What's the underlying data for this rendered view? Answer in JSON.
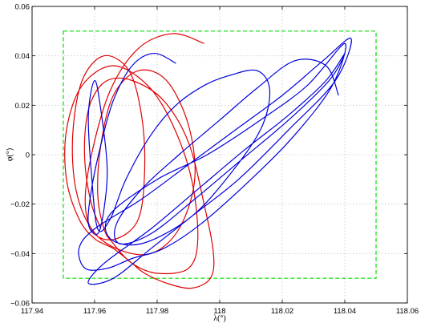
{
  "chart_data": {
    "type": "line",
    "xlabel": "λ(°)",
    "ylabel": "φ(°)",
    "xlim": [
      117.94,
      118.06
    ],
    "ylim": [
      -0.06,
      0.06
    ],
    "x_ticks": [
      "117.94",
      "117.96",
      "117.98",
      "118",
      "118.02",
      "118.04",
      "118.06"
    ],
    "y_ticks": [
      "−0.06",
      "−0.04",
      "−0.02",
      "0",
      "0.02",
      "0.04",
      "0.06"
    ],
    "grid": true,
    "boundary_box": {
      "color": "#00e000",
      "style": "dashed",
      "x": [
        117.95,
        118.05
      ],
      "y": [
        -0.05,
        0.05
      ]
    },
    "series": [
      {
        "color": "#e00000",
        "points": [
          [
            117.995,
            0.045
          ],
          [
            117.985,
            0.049
          ],
          [
            117.974,
            0.043
          ],
          [
            117.965,
            0.026
          ],
          [
            117.959,
            0.0
          ],
          [
            117.957,
            -0.02
          ],
          [
            117.96,
            -0.032
          ],
          [
            117.967,
            -0.034
          ],
          [
            117.974,
            -0.026
          ],
          [
            117.976,
            -0.006
          ],
          [
            117.975,
            0.016
          ],
          [
            117.971,
            0.034
          ],
          [
            117.963,
            0.04
          ],
          [
            117.956,
            0.03
          ],
          [
            117.953,
            0.008
          ],
          [
            117.954,
            -0.014
          ],
          [
            117.959,
            -0.03
          ],
          [
            117.967,
            -0.038
          ],
          [
            117.978,
            -0.04
          ],
          [
            117.987,
            -0.03
          ],
          [
            117.992,
            -0.01
          ],
          [
            117.99,
            0.012
          ],
          [
            117.983,
            0.03
          ],
          [
            117.974,
            0.034
          ],
          [
            117.966,
            0.024
          ],
          [
            117.962,
            0.004
          ],
          [
            117.961,
            -0.016
          ],
          [
            117.963,
            -0.03
          ],
          [
            117.966,
            -0.036
          ],
          [
            117.972,
            -0.044
          ],
          [
            117.98,
            -0.048
          ],
          [
            117.99,
            -0.046
          ],
          [
            117.993,
            -0.034
          ],
          [
            117.991,
            -0.01
          ],
          [
            117.985,
            0.012
          ],
          [
            117.977,
            0.028
          ],
          [
            117.966,
            0.036
          ],
          [
            117.956,
            0.028
          ],
          [
            117.951,
            0.01
          ],
          [
            117.951,
            -0.01
          ],
          [
            117.955,
            -0.026
          ],
          [
            117.96,
            -0.034
          ],
          [
            117.966,
            -0.038
          ],
          [
            117.972,
            -0.044
          ],
          [
            117.976,
            -0.048
          ],
          [
            117.983,
            -0.052
          ],
          [
            117.991,
            -0.054
          ],
          [
            117.997,
            -0.05
          ],
          [
            117.998,
            -0.04
          ],
          [
            117.995,
            -0.02
          ],
          [
            117.99,
            0.005
          ],
          [
            117.982,
            0.022
          ],
          [
            117.972,
            0.03
          ],
          [
            117.964,
            0.03
          ],
          [
            117.959,
            0.022
          ],
          [
            117.957,
            0.01
          ],
          [
            117.957,
            -0.005
          ],
          [
            117.959,
            -0.02
          ],
          [
            117.962,
            -0.03
          ]
        ]
      },
      {
        "color": "#0000dd",
        "points": [
          [
            117.986,
            0.037
          ],
          [
            117.979,
            0.041
          ],
          [
            117.972,
            0.036
          ],
          [
            117.966,
            0.022
          ],
          [
            117.962,
            0.004
          ],
          [
            117.959,
            -0.014
          ],
          [
            117.958,
            -0.028
          ],
          [
            117.961,
            -0.032
          ],
          [
            117.963,
            -0.022
          ],
          [
            117.964,
            -0.005
          ],
          [
            117.962,
            0.018
          ],
          [
            117.96,
            0.03
          ],
          [
            117.958,
            0.016
          ],
          [
            117.959,
            -0.008
          ],
          [
            117.961,
            -0.03
          ],
          [
            117.965,
            -0.026
          ],
          [
            117.97,
            -0.01
          ],
          [
            117.978,
            0.008
          ],
          [
            117.986,
            0.02
          ],
          [
            117.995,
            0.028
          ],
          [
            118.003,
            0.032
          ],
          [
            118.012,
            0.034
          ],
          [
            118.016,
            0.026
          ],
          [
            118.013,
            0.01
          ],
          [
            118.002,
            -0.01
          ],
          [
            117.99,
            -0.026
          ],
          [
            117.975,
            -0.036
          ],
          [
            117.965,
            -0.034
          ],
          [
            117.965,
            -0.024
          ],
          [
            117.98,
            -0.01
          ],
          [
            117.996,
            0.0
          ],
          [
            118.013,
            0.014
          ],
          [
            118.028,
            0.028
          ],
          [
            118.04,
            0.045
          ],
          [
            118.036,
            0.028
          ],
          [
            118.024,
            0.008
          ],
          [
            118.01,
            -0.01
          ],
          [
            117.994,
            -0.028
          ],
          [
            117.982,
            -0.038
          ],
          [
            117.972,
            -0.042
          ],
          [
            117.964,
            -0.046
          ],
          [
            117.957,
            -0.046
          ],
          [
            117.955,
            -0.038
          ],
          [
            117.96,
            -0.03
          ],
          [
            117.975,
            -0.018
          ],
          [
            117.99,
            -0.004
          ],
          [
            118.005,
            0.01
          ],
          [
            118.02,
            0.024
          ],
          [
            118.033,
            0.038
          ],
          [
            118.042,
            0.047
          ],
          [
            118.037,
            0.03
          ],
          [
            118.022,
            0.01
          ],
          [
            118.006,
            -0.01
          ],
          [
            117.992,
            -0.024
          ],
          [
            117.978,
            -0.038
          ],
          [
            117.966,
            -0.05
          ],
          [
            117.958,
            -0.052
          ],
          [
            117.963,
            -0.044
          ],
          [
            117.978,
            -0.03
          ],
          [
            117.993,
            -0.014
          ],
          [
            118.008,
            0.002
          ],
          [
            118.022,
            0.016
          ],
          [
            118.034,
            0.03
          ],
          [
            118.04,
            0.041
          ],
          [
            118.035,
            0.03
          ],
          [
            118.022,
            0.014
          ],
          [
            118.007,
            -0.002
          ],
          [
            117.992,
            -0.018
          ],
          [
            117.978,
            -0.032
          ],
          [
            117.968,
            -0.036
          ],
          [
            117.967,
            -0.028
          ],
          [
            117.975,
            -0.014
          ],
          [
            117.987,
            0.0
          ],
          [
            118.0,
            0.014
          ],
          [
            118.012,
            0.027
          ],
          [
            118.024,
            0.038
          ],
          [
            118.034,
            0.036
          ],
          [
            118.038,
            0.024
          ]
        ]
      }
    ]
  }
}
